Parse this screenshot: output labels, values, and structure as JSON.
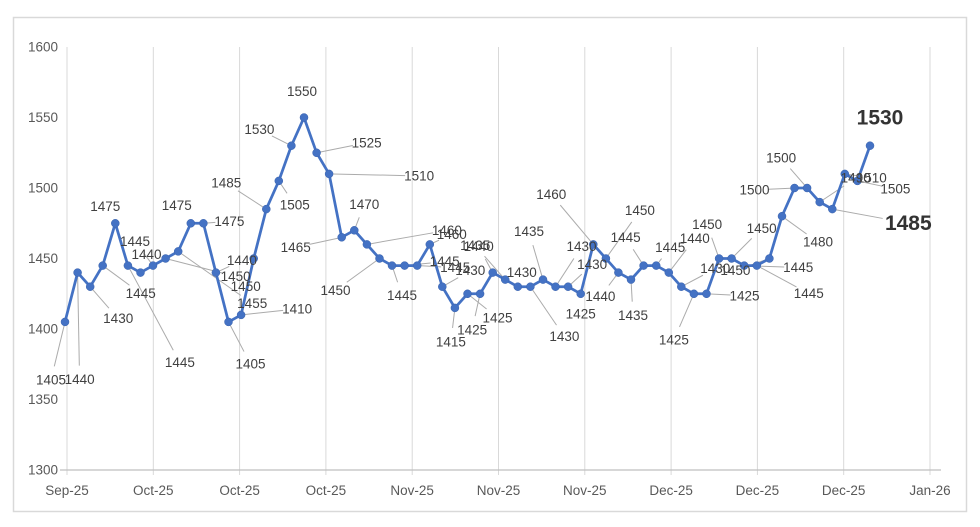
{
  "chart_data": {
    "type": "line",
    "title": "",
    "legend": "none",
    "grid": "vertical-only",
    "data_labels": true,
    "ylim": [
      1300,
      1600
    ],
    "y_tick_labels": [
      "1600",
      "1550",
      "1500",
      "1450",
      "1400",
      "1350",
      "1300"
    ],
    "x_tick_labels": [
      "Sep-25",
      "Oct-25",
      "Oct-25",
      "Oct-25",
      "Nov-25",
      "Nov-25",
      "Nov-25",
      "Dec-25",
      "Dec-25",
      "Dec-25",
      "Jan-26"
    ],
    "series": [
      {
        "name": "value",
        "values": [
          1405,
          1440,
          1430,
          1445,
          1475,
          1445,
          1440,
          1445,
          1450,
          1455,
          1475,
          1475,
          1440,
          1405,
          1410,
          1450,
          1485,
          1505,
          1530,
          1550,
          1525,
          1510,
          1465,
          1470,
          1460,
          1450,
          1445,
          1445,
          1445,
          1460,
          1430,
          1415,
          1425,
          1425,
          1440,
          1435,
          1430,
          1430,
          1435,
          1430,
          1430,
          1425,
          1460,
          1450,
          1440,
          1435,
          1445,
          1445,
          1440,
          1430,
          1425,
          1425,
          1450,
          1450,
          1445,
          1445,
          1450,
          1480,
          1500,
          1500,
          1490,
          1485,
          1510,
          1505,
          1530
        ]
      }
    ],
    "emphasized_labels": [
      {
        "index": 61,
        "text": "1485"
      },
      {
        "index": 64,
        "text": "1530"
      }
    ],
    "label_offsets": [
      [
        -14,
        58,
        1,
        0
      ],
      [
        2,
        107,
        1,
        0
      ],
      [
        28,
        32,
        1,
        0
      ],
      [
        38,
        28,
        1,
        0
      ],
      [
        -10,
        -17,
        0,
        0
      ],
      [
        52,
        97,
        1,
        0
      ],
      [
        6,
        -18,
        0,
        0
      ],
      [
        -18,
        -24,
        1,
        0
      ],
      [
        70,
        18,
        1,
        0
      ],
      [
        74,
        52,
        1,
        0
      ],
      [
        -14,
        -18,
        0,
        0
      ],
      [
        26,
        -2,
        1,
        0
      ],
      [
        26,
        -12,
        1,
        0
      ],
      [
        22,
        42,
        1,
        0
      ],
      [
        56,
        -6,
        1,
        0
      ],
      [
        -8,
        28,
        1,
        0
      ],
      [
        -40,
        -26,
        1,
        0
      ],
      [
        16,
        24,
        1,
        0
      ],
      [
        -32,
        -16,
        1,
        0
      ],
      [
        -2,
        -26,
        0,
        0
      ],
      [
        50,
        -10,
        1,
        0
      ],
      [
        90,
        2,
        1,
        0
      ],
      [
        -46,
        10,
        1,
        0
      ],
      [
        10,
        -26,
        1,
        0
      ],
      [
        80,
        -14,
        1,
        0
      ],
      [
        -44,
        32,
        1,
        0
      ],
      [
        10,
        30,
        1,
        0
      ],
      [
        40,
        -4,
        1,
        0
      ],
      [
        38,
        2,
        1,
        0
      ],
      [
        22,
        -10,
        1,
        0
      ],
      [
        28,
        -16,
        1,
        0
      ],
      [
        -4,
        34,
        1,
        0
      ],
      [
        30,
        24,
        1,
        0
      ],
      [
        -8,
        36,
        1,
        0
      ],
      [
        -14,
        -26,
        1,
        0
      ],
      [
        -30,
        -34,
        1,
        0
      ],
      [
        4,
        -14,
        0,
        0
      ],
      [
        34,
        50,
        1,
        0
      ],
      [
        -14,
        -48,
        1,
        0
      ],
      [
        26,
        -40,
        1,
        0
      ],
      [
        24,
        -22,
        1,
        0
      ],
      [
        0,
        20,
        0,
        0
      ],
      [
        -42,
        -50,
        1,
        0
      ],
      [
        34,
        -48,
        1,
        0
      ],
      [
        -18,
        24,
        1,
        0
      ],
      [
        2,
        36,
        1,
        0
      ],
      [
        -18,
        -28,
        1,
        0
      ],
      [
        14,
        -18,
        1,
        0
      ],
      [
        26,
        -34,
        1,
        0
      ],
      [
        34,
        -18,
        1,
        0
      ],
      [
        -20,
        46,
        1,
        0
      ],
      [
        38,
        2,
        1,
        0
      ],
      [
        -12,
        -34,
        1,
        0
      ],
      [
        30,
        -30,
        1,
        0
      ],
      [
        54,
        2,
        1,
        0
      ],
      [
        52,
        28,
        1,
        0
      ],
      [
        -34,
        12,
        1,
        0
      ],
      [
        36,
        26,
        1,
        0
      ],
      [
        -40,
        2,
        1,
        0
      ],
      [
        -26,
        -30,
        1,
        0
      ],
      [
        36,
        -24,
        1,
        0
      ],
      [
        76,
        14,
        1,
        1
      ],
      [
        27,
        4,
        1,
        0
      ],
      [
        38,
        8,
        1,
        0
      ],
      [
        10,
        -28,
        1,
        1
      ]
    ]
  },
  "styles": {
    "line_color": "#4472C4",
    "marker_color": "#4472C4",
    "marker_edge_color": "#3A62AC",
    "data_label_color": "#404040",
    "big_label_color": "#333333",
    "leader_color": "#ABABAB",
    "grid_color": "#D9D9D9",
    "axis_line_color": "#BFBFBF",
    "axis_text_color": "#595959",
    "border_color": "#D9D9D9",
    "background_color": "#FFFFFF"
  }
}
